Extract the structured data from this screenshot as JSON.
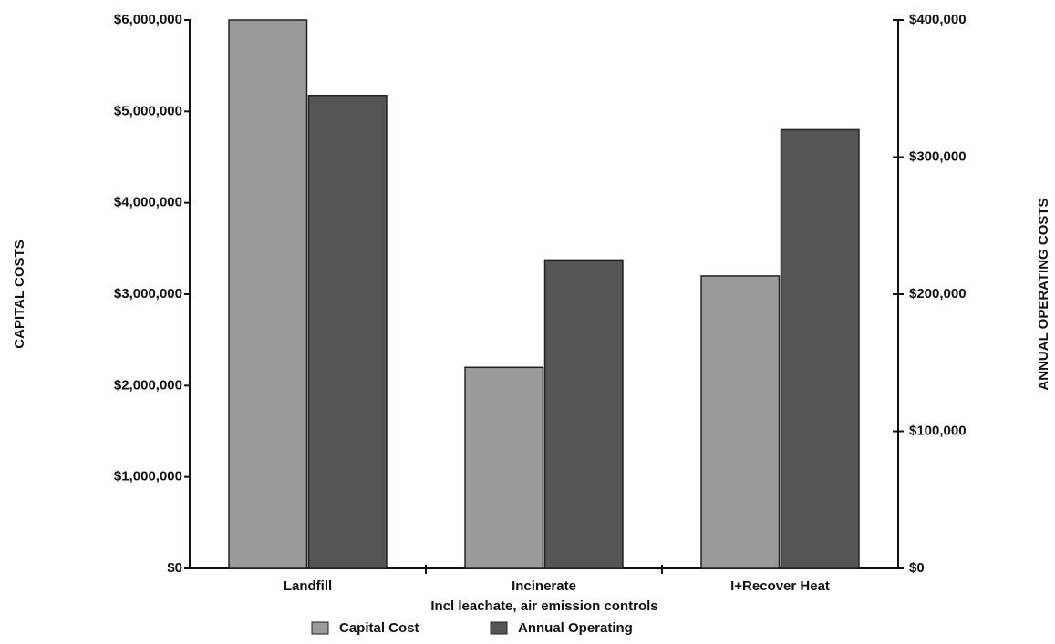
{
  "chart_data": {
    "type": "bar",
    "categories": [
      "Landfill",
      "Incinerate",
      "I+Recover Heat"
    ],
    "xlabel": "Incl leachate, air emission controls",
    "ylabel": "CAPITAL COSTS",
    "y2label": "ANNUAL OPERATING COSTS",
    "series": [
      {
        "name": "Capital Cost",
        "color": "#9a9a9a",
        "values": [
          6000000,
          2200000,
          3200000
        ]
      },
      {
        "name": "Annual Operating",
        "color": "#555555",
        "values": [
          345000,
          225000,
          320000
        ],
        "axis": "y2"
      }
    ],
    "ylim": [
      0,
      6000000
    ],
    "yticks": [
      {
        "value": 0,
        "label": "$0"
      },
      {
        "value": 1000000,
        "label": "$1,000,000"
      },
      {
        "value": 2000000,
        "label": "$2,000,000"
      },
      {
        "value": 3000000,
        "label": "$3,000,000"
      },
      {
        "value": 4000000,
        "label": "$4,000,000"
      },
      {
        "value": 5000000,
        "label": "$5,000,000"
      },
      {
        "value": 6000000,
        "label": "$6,000,000"
      }
    ],
    "y2lim": [
      0,
      400000
    ],
    "y2ticks": [
      {
        "value": 0,
        "label": "$0"
      },
      {
        "value": 100000,
        "label": "$100,000"
      },
      {
        "value": 200000,
        "label": "$200,000"
      },
      {
        "value": 300000,
        "label": "$300,000"
      },
      {
        "value": 400000,
        "label": "$400,000"
      }
    ],
    "grid": false
  }
}
